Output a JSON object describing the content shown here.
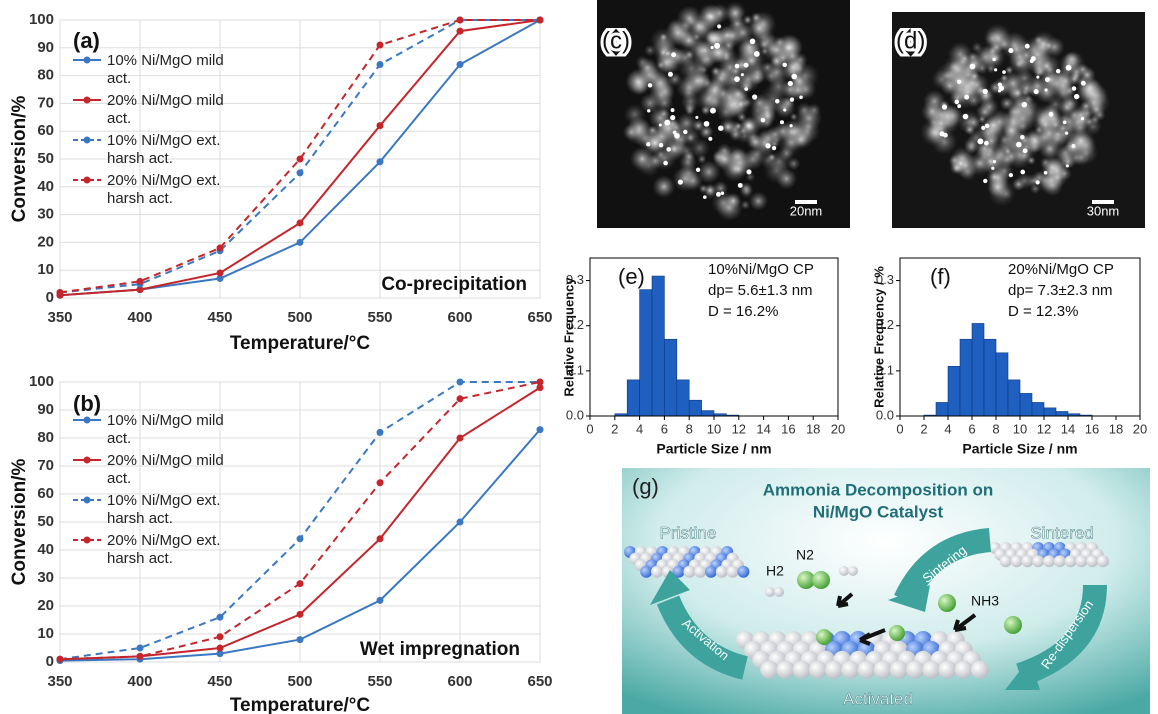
{
  "chart_data": [
    {
      "type": "line",
      "panel_label": "(a)",
      "annotation": "Co-precipitation",
      "x_label": "Temperature/°C",
      "y_label": "Conversion/%",
      "x": [
        350,
        400,
        450,
        500,
        550,
        600,
        650
      ],
      "xlim": [
        350,
        650
      ],
      "xticks": [
        350,
        400,
        450,
        500,
        550,
        600,
        650
      ],
      "ylim": [
        0,
        100
      ],
      "yticks": [
        0,
        10,
        20,
        30,
        40,
        50,
        60,
        70,
        80,
        90,
        100
      ],
      "grid": true,
      "legend_position": "upper left",
      "series": [
        {
          "name": "10% Ni/MgO mild act.",
          "color": "#3a78c2",
          "dashed": false,
          "values": [
            1,
            3,
            7,
            20,
            49,
            84,
            100
          ]
        },
        {
          "name": "20% Ni/MgO mild act.",
          "color": "#c4262c",
          "dashed": false,
          "values": [
            1,
            3,
            9,
            27,
            62,
            96,
            100
          ]
        },
        {
          "name": "10% Ni/MgO ext. harsh act.",
          "color": "#3a78c2",
          "dashed": true,
          "values": [
            2,
            5,
            17,
            45,
            84,
            100,
            100
          ]
        },
        {
          "name": "20% Ni/MgO ext. harsh act.",
          "color": "#c4262c",
          "dashed": true,
          "values": [
            2,
            6,
            18,
            50,
            91,
            100,
            100
          ]
        }
      ]
    },
    {
      "type": "line",
      "panel_label": "(b)",
      "annotation": "Wet impregnation",
      "x_label": "Temperature/°C",
      "y_label": "Conversion/%",
      "x": [
        350,
        400,
        450,
        500,
        550,
        600,
        650
      ],
      "xlim": [
        350,
        650
      ],
      "xticks": [
        350,
        400,
        450,
        500,
        550,
        600,
        650
      ],
      "ylim": [
        0,
        100
      ],
      "yticks": [
        0,
        10,
        20,
        30,
        40,
        50,
        60,
        70,
        80,
        90,
        100
      ],
      "grid": true,
      "legend_position": "upper left",
      "series": [
        {
          "name": "10% Ni/MgO mild act.",
          "color": "#3a78c2",
          "dashed": false,
          "values": [
            0.5,
            1,
            3,
            8,
            22,
            50,
            83
          ]
        },
        {
          "name": "20% Ni/MgO mild act.",
          "color": "#c4262c",
          "dashed": false,
          "values": [
            1,
            2,
            5,
            17,
            44,
            80,
            98
          ]
        },
        {
          "name": "10% Ni/MgO ext. harsh act.",
          "color": "#3a78c2",
          "dashed": true,
          "values": [
            1,
            5,
            16,
            44,
            82,
            100,
            100
          ]
        },
        {
          "name": "20% Ni/MgO ext. harsh act.",
          "color": "#c4262c",
          "dashed": true,
          "values": [
            1,
            2,
            9,
            28,
            64,
            94,
            100
          ]
        }
      ]
    },
    {
      "type": "histogram",
      "panel_label": "(e)",
      "annotation": [
        "10%Ni/MgO CP",
        "dp= 5.6±1.3 nm",
        "D = 16.2%"
      ],
      "x_label": "Particle Size / nm",
      "y_label": "Relative Frequency",
      "color": "#1f5fbf",
      "bins": [
        2,
        3,
        4,
        5,
        6,
        7,
        8,
        9,
        10,
        11,
        12
      ],
      "counts": [
        0.005,
        0.08,
        0.28,
        0.31,
        0.17,
        0.08,
        0.035,
        0.012,
        0.005,
        0.002
      ],
      "xlim": [
        0,
        20
      ],
      "xticks": [
        0,
        2,
        4,
        6,
        8,
        10,
        12,
        14,
        16,
        18,
        20
      ],
      "ylim": [
        0,
        0.35
      ],
      "yticks": [
        {
          "value": 0,
          "label": "0.0"
        },
        {
          "value": 0.1,
          "label": "0.1"
        },
        {
          "value": 0.2,
          "label": "0.2"
        },
        {
          "value": 0.3,
          "label": "0.3"
        }
      ]
    },
    {
      "type": "histogram",
      "panel_label": "(f)",
      "annotation": [
        "20%Ni/MgO CP",
        "dp= 7.3±2.3 nm",
        "D = 12.3%"
      ],
      "x_label": "Particle Size / nm",
      "y_label": "Relative Frequency / %",
      "color": "#1f5fbf",
      "bins": [
        2,
        3,
        4,
        5,
        6,
        7,
        8,
        9,
        10,
        11,
        12,
        13,
        14,
        15,
        16
      ],
      "counts": [
        0.002,
        0.03,
        0.11,
        0.17,
        0.205,
        0.17,
        0.14,
        0.08,
        0.05,
        0.03,
        0.018,
        0.01,
        0.005,
        0.002
      ],
      "xlim": [
        0,
        20
      ],
      "xticks": [
        0,
        2,
        4,
        6,
        8,
        10,
        12,
        14,
        16,
        18,
        20
      ],
      "ylim": [
        0,
        0.35
      ],
      "yticks": [
        {
          "value": 0,
          "label": "0.0"
        },
        {
          "value": 0.1,
          "label": "0.1"
        },
        {
          "value": 0.2,
          "label": "0.2"
        },
        {
          "value": 0.3,
          "label": "0.3"
        }
      ]
    }
  ],
  "images": [
    {
      "panel_label": "(c)",
      "scale_bar": "20nm"
    },
    {
      "panel_label": "(d)",
      "scale_bar": "30nm"
    }
  ],
  "diagram": {
    "panel_label": "(g)",
    "title": [
      "Ammonia Decomposition on",
      "Ni/MgO Catalyst"
    ],
    "pristine": "Pristine",
    "sintered": "Sintered",
    "activated": "Activated",
    "sintering": "Sintering",
    "activation": "Activation",
    "redispersion": "Re-dispersion",
    "h2": "H2",
    "n2": "N2",
    "nh3": "NH3"
  }
}
